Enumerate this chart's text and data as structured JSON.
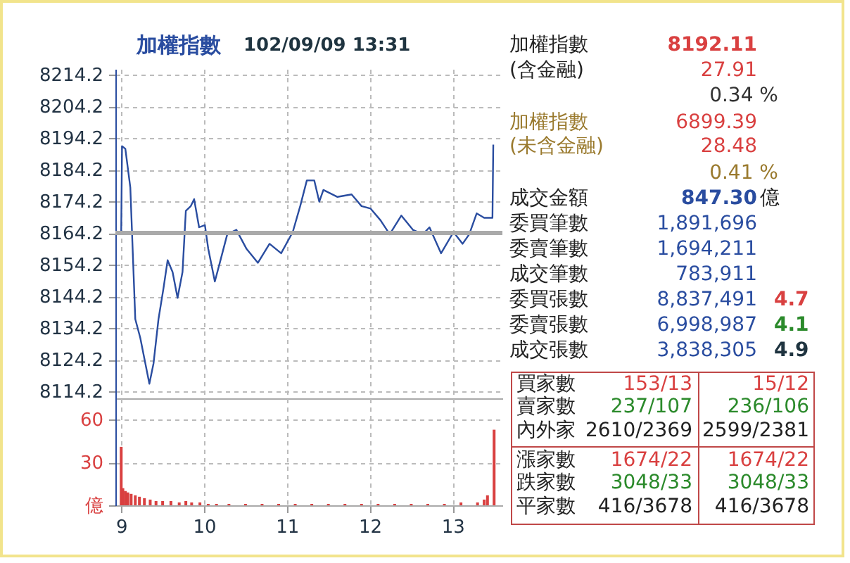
{
  "chart_data": [
    {
      "type": "line",
      "title": "加權指數",
      "subtitle": "102/09/09 13:31",
      "x": [
        9,
        9.01,
        9.05,
        9.11,
        9.17,
        9.23,
        9.34,
        9.39,
        9.45,
        9.51,
        9.56,
        9.62,
        9.68,
        9.74,
        9.78,
        9.84,
        9.88,
        9.94,
        10.01,
        10.05,
        10.13,
        10.19,
        10.28,
        10.39,
        10.51,
        10.65,
        10.79,
        10.93,
        11.07,
        11.16,
        11.24,
        11.33,
        11.39,
        11.44,
        11.61,
        11.78,
        11.9,
        12.01,
        12.13,
        12.24,
        12.38,
        12.52,
        12.64,
        12.72,
        12.86,
        13.01,
        13.12,
        13.2,
        13.29,
        13.38,
        13.48,
        13.49
      ],
      "series": [
        {
          "color": "#2a4da0",
          "values": [
            8164.2,
            8191.6,
            8190.8,
            8178.6,
            8137.0,
            8131.1,
            8116.6,
            8123.0,
            8137.0,
            8146.7,
            8155.6,
            8151.9,
            8143.7,
            8151.9,
            8171.2,
            8172.7,
            8174.9,
            8166.0,
            8166.7,
            8159.3,
            8148.9,
            8154.8,
            8163.8,
            8165.2,
            8159.3,
            8154.8,
            8160.8,
            8157.8,
            8164.5,
            8172.7,
            8180.8,
            8180.8,
            8174.1,
            8177.8,
            8175.6,
            8176.4,
            8172.7,
            8171.9,
            8168.2,
            8163.8,
            8169.7,
            8165.2,
            8163.8,
            8166.0,
            8157.8,
            8164.5,
            8160.8,
            8163.8,
            8170.4,
            8169.0,
            8169.0,
            8192.1
          ]
        }
      ],
      "xlim": [
        8.93,
        13.6
      ],
      "xticks": [
        9,
        10,
        11,
        12,
        13
      ],
      "ylim": [
        8112,
        8216
      ],
      "yticks": [
        8114.2,
        8124.2,
        8134.2,
        8144.2,
        8154.2,
        8164.2,
        8174.2,
        8184.2,
        8194.2,
        8204.2,
        8214.2
      ],
      "ref_lines": [
        {
          "axis": "y",
          "value": 8164.2,
          "color": "#aaaaaa"
        }
      ],
      "grid": true,
      "tick_labels": "y"
    },
    {
      "type": "bar",
      "x": [
        9,
        9.02,
        9.05,
        9.08,
        9.12,
        9.17,
        9.22,
        9.28,
        9.35,
        9.42,
        9.5,
        9.6,
        9.7,
        9.78,
        9.85,
        9.95,
        10.05,
        10.15,
        10.3,
        10.5,
        10.7,
        10.9,
        11.1,
        11.3,
        11.5,
        11.7,
        11.9,
        12.1,
        12.3,
        12.5,
        12.7,
        12.9,
        13.1,
        13.3,
        13.38,
        13.42,
        13.5
      ],
      "series": [
        {
          "color": "#d94040",
          "values": [
            41,
            12,
            10,
            9,
            8,
            7,
            6,
            5,
            4,
            3,
            3,
            3,
            2,
            3,
            2,
            2,
            1,
            1,
            1,
            1,
            1,
            1,
            1,
            1,
            1,
            1,
            1,
            1,
            1,
            1,
            1,
            1,
            2,
            2,
            4,
            7,
            53
          ]
        }
      ],
      "xlim": [
        8.93,
        13.6
      ],
      "xticks": [
        9,
        10,
        11,
        12,
        13
      ],
      "ylim": [
        0,
        75
      ],
      "yticks": [
        {
          "value": 0,
          "label": "億"
        },
        30,
        60
      ],
      "grid": true
    },
    {
      "type": "other",
      "annotations": [
        "加權指數",
        "8192.11",
        "(含金融)",
        "27.91",
        "0.34 %",
        "加權指數",
        "6899.39",
        "(未含金融)",
        "28.48",
        "0.41 %",
        "成交金額",
        "847.30",
        "億",
        "委買筆數",
        "1,891,696",
        "委賣筆數",
        "1,694,211",
        "成交筆數",
        "783,911",
        "委買張數",
        "8,837,491",
        "4.7",
        "委賣張數",
        "6,998,987",
        "4.1",
        "成交張數",
        "3,838,305",
        "4.9",
        "買家數",
        "153/13",
        "15/12",
        "賣家數",
        "237/107",
        "236/106",
        "內外家",
        "2610/2369",
        "2599/2381",
        "漲家數",
        "1674/22",
        "1674/22",
        "跌家數",
        "3048/33",
        "3048/33",
        "平家數",
        "416/3678",
        "416/3678"
      ]
    }
  ]
}
